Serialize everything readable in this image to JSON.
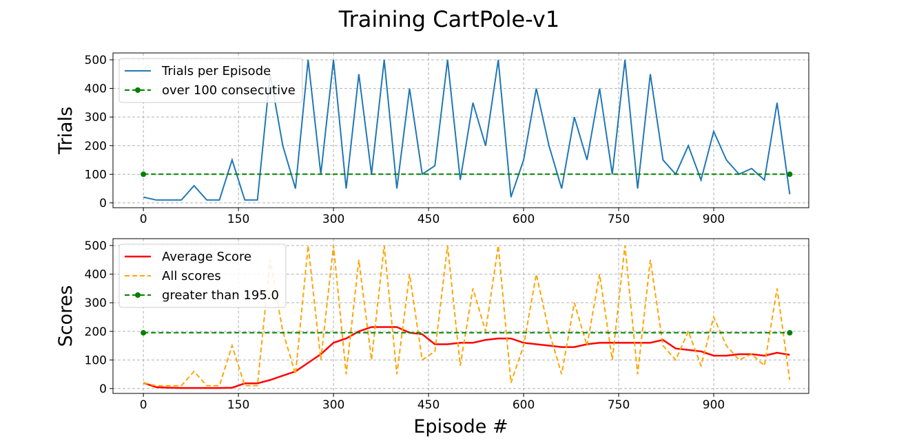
{
  "title": "Training CartPole-v1",
  "chart_data": [
    {
      "type": "line",
      "ylabel": "Trials",
      "grid": true,
      "legend": "upper left",
      "x": [
        0,
        20,
        40,
        60,
        80,
        100,
        120,
        140,
        160,
        180,
        200,
        220,
        240,
        260,
        280,
        300,
        320,
        340,
        360,
        380,
        400,
        420,
        440,
        460,
        480,
        500,
        520,
        540,
        560,
        580,
        600,
        620,
        640,
        660,
        680,
        700,
        720,
        740,
        760,
        780,
        800,
        820,
        840,
        860,
        880,
        900,
        920,
        940,
        960,
        980,
        1000,
        1020
      ],
      "xlim": [
        -48,
        1050
      ],
      "xticks": [
        0,
        150,
        300,
        450,
        600,
        750,
        900
      ],
      "ylim": [
        -17,
        524
      ],
      "yticks": [
        0,
        100,
        200,
        300,
        400,
        500
      ],
      "series": [
        {
          "name": "Trials per Episode",
          "color": "#1f77b4",
          "dash": "solid",
          "values": [
            20,
            10,
            10,
            10,
            60,
            10,
            10,
            150,
            10,
            10,
            450,
            200,
            50,
            500,
            100,
            500,
            50,
            450,
            100,
            500,
            50,
            400,
            100,
            130,
            500,
            80,
            350,
            200,
            500,
            20,
            150,
            400,
            200,
            50,
            300,
            150,
            400,
            100,
            500,
            50,
            450,
            150,
            100,
            200,
            80,
            250,
            150,
            100,
            120,
            80,
            350,
            30
          ]
        },
        {
          "name": "over 100 consecutive",
          "color": "#008000",
          "dash": "dashed",
          "marker": true,
          "x": [
            0,
            1020
          ],
          "values": [
            100,
            100
          ]
        }
      ]
    },
    {
      "type": "line",
      "ylabel": "Scores",
      "xlabel": "Episode #",
      "grid": true,
      "legend": "upper left",
      "x": [
        0,
        20,
        40,
        60,
        80,
        100,
        120,
        140,
        160,
        180,
        200,
        220,
        240,
        260,
        280,
        300,
        320,
        340,
        360,
        380,
        400,
        420,
        440,
        460,
        480,
        500,
        520,
        540,
        560,
        580,
        600,
        620,
        640,
        660,
        680,
        700,
        720,
        740,
        760,
        780,
        800,
        820,
        840,
        860,
        880,
        900,
        920,
        940,
        960,
        980,
        1000,
        1020
      ],
      "xlim": [
        -48,
        1050
      ],
      "xticks": [
        0,
        150,
        300,
        450,
        600,
        750,
        900
      ],
      "ylim": [
        -17,
        524
      ],
      "yticks": [
        0,
        100,
        200,
        300,
        400,
        500
      ],
      "series": [
        {
          "name": "Average Score",
          "color": "#ff0000",
          "dash": "solid",
          "width": 2.5,
          "values": [
            20,
            5,
            3,
            2,
            2,
            2,
            2,
            3,
            18,
            18,
            30,
            45,
            60,
            90,
            120,
            160,
            175,
            200,
            215,
            215,
            215,
            195,
            190,
            155,
            155,
            160,
            160,
            170,
            175,
            175,
            160,
            155,
            150,
            145,
            145,
            155,
            160,
            160,
            160,
            160,
            160,
            170,
            140,
            135,
            130,
            115,
            115,
            120,
            120,
            115,
            125,
            118
          ]
        },
        {
          "name": "All scores",
          "color": "#ffa500",
          "dash": "dashed",
          "values": [
            20,
            10,
            10,
            10,
            60,
            10,
            10,
            150,
            10,
            10,
            450,
            200,
            50,
            500,
            100,
            500,
            50,
            450,
            100,
            500,
            50,
            400,
            100,
            130,
            500,
            80,
            350,
            200,
            500,
            20,
            150,
            400,
            200,
            50,
            300,
            150,
            400,
            100,
            500,
            50,
            450,
            150,
            100,
            200,
            80,
            250,
            150,
            100,
            120,
            80,
            350,
            30
          ]
        },
        {
          "name": "greater than 195.0",
          "color": "#008000",
          "dash": "dashed",
          "marker": true,
          "x": [
            0,
            1020
          ],
          "values": [
            195,
            195
          ]
        }
      ]
    }
  ]
}
